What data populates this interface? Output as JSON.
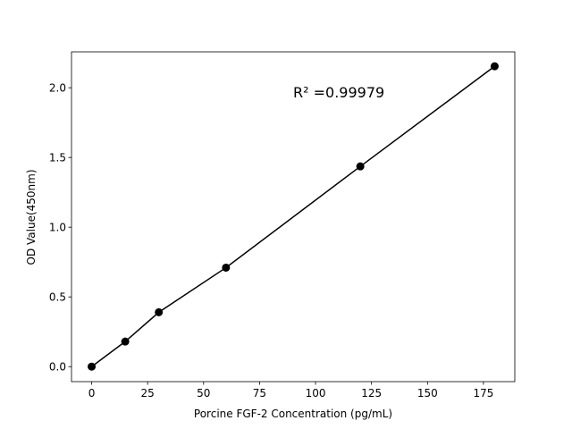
{
  "chart_data": {
    "type": "scatter",
    "title": "",
    "xlabel": "Porcine FGF-2 Concentration (pg/mL)",
    "ylabel": "OD Value(450nm)",
    "xlim": [
      -9,
      189
    ],
    "ylim": [
      -0.1075,
      2.2575
    ],
    "xticks": [
      0,
      25,
      50,
      75,
      100,
      125,
      150,
      175
    ],
    "yticks": [
      0.0,
      0.5,
      1.0,
      1.5,
      2.0
    ],
    "xtick_labels": [
      "0",
      "25",
      "50",
      "75",
      "100",
      "125",
      "150",
      "175"
    ],
    "ytick_labels": [
      "0.0",
      "0.5",
      "1.0",
      "1.5",
      "2.0"
    ],
    "grid": false,
    "series": [
      {
        "x": [
          0,
          15,
          30,
          60,
          120,
          180
        ],
        "y": [
          0.0,
          0.18,
          0.39,
          0.71,
          1.436,
          2.154
        ],
        "color": "#000000",
        "marker": "circle",
        "line": true
      }
    ],
    "annotation": {
      "text": "R² =0.99979",
      "x": 90,
      "y": 1.93
    }
  }
}
